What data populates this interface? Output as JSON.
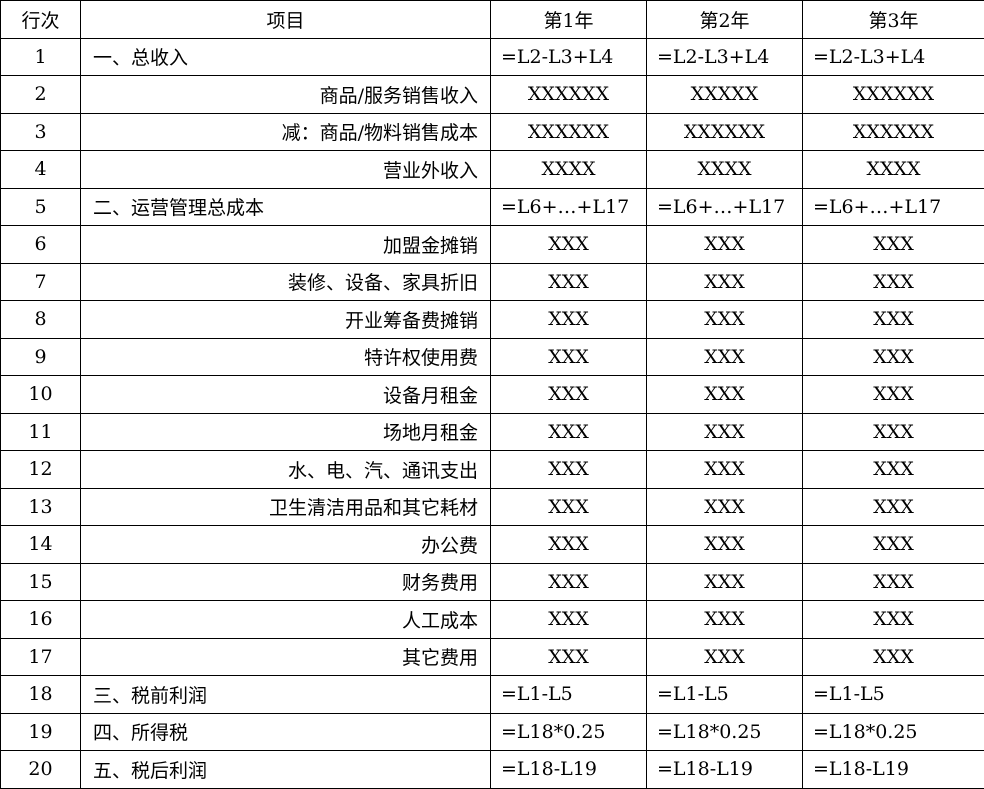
{
  "headers": [
    "行次",
    "项目",
    "第1年",
    "第2年",
    "第3年"
  ],
  "rows": [
    {
      "line": "1",
      "item": "一、总收入",
      "align": "left",
      "values": [
        "=L2-L3+L4",
        "=L2-L3+L4",
        "=L2-L3+L4"
      ],
      "valign": "left"
    },
    {
      "line": "2",
      "item": "商品/服务销售收入",
      "align": "right",
      "values": [
        "XXXXXX",
        "XXXXX",
        "XXXXXX"
      ],
      "valign": "center"
    },
    {
      "line": "3",
      "item": "减：商品/物料销售成本",
      "align": "right",
      "values": [
        "XXXXXX",
        "XXXXXX",
        "XXXXXX"
      ],
      "valign": "center"
    },
    {
      "line": "4",
      "item": "营业外收入",
      "align": "right",
      "values": [
        "XXXX",
        "XXXX",
        "XXXX"
      ],
      "valign": "center"
    },
    {
      "line": "5",
      "item": "二、运营管理总成本",
      "align": "left",
      "values": [
        "=L6+…+L17",
        "=L6+…+L17",
        "=L6+…+L17"
      ],
      "valign": "left"
    },
    {
      "line": "6",
      "item": "加盟金摊销",
      "align": "right",
      "values": [
        "XXX",
        "XXX",
        "XXX"
      ],
      "valign": "center"
    },
    {
      "line": "7",
      "item": "装修、设备、家具折旧",
      "align": "right",
      "values": [
        "XXX",
        "XXX",
        "XXX"
      ],
      "valign": "center"
    },
    {
      "line": "8",
      "item": "开业筹备费摊销",
      "align": "right",
      "values": [
        "XXX",
        "XXX",
        "XXX"
      ],
      "valign": "center"
    },
    {
      "line": "9",
      "item": "特许权使用费",
      "align": "right",
      "values": [
        "XXX",
        "XXX",
        "XXX"
      ],
      "valign": "center"
    },
    {
      "line": "10",
      "item": "设备月租金",
      "align": "right",
      "values": [
        "XXX",
        "XXX",
        "XXX"
      ],
      "valign": "center"
    },
    {
      "line": "11",
      "item": "场地月租金",
      "align": "right",
      "values": [
        "XXX",
        "XXX",
        "XXX"
      ],
      "valign": "center"
    },
    {
      "line": "12",
      "item": "水、电、汽、通讯支出",
      "align": "right",
      "values": [
        "XXX",
        "XXX",
        "XXX"
      ],
      "valign": "center"
    },
    {
      "line": "13",
      "item": "卫生清洁用品和其它耗材",
      "align": "right",
      "values": [
        "XXX",
        "XXX",
        "XXX"
      ],
      "valign": "center"
    },
    {
      "line": "14",
      "item": "办公费",
      "align": "right",
      "values": [
        "XXX",
        "XXX",
        "XXX"
      ],
      "valign": "center"
    },
    {
      "line": "15",
      "item": "财务费用",
      "align": "right",
      "values": [
        "XXX",
        "XXX",
        "XXX"
      ],
      "valign": "center"
    },
    {
      "line": "16",
      "item": "人工成本",
      "align": "right",
      "values": [
        "XXX",
        "XXX",
        "XXX"
      ],
      "valign": "center"
    },
    {
      "line": "17",
      "item": "其它费用",
      "align": "right",
      "values": [
        "XXX",
        "XXX",
        "XXX"
      ],
      "valign": "center"
    },
    {
      "line": "18",
      "item": "三、税前利润",
      "align": "left",
      "values": [
        "=L1-L5",
        "=L1-L5",
        "=L1-L5"
      ],
      "valign": "left"
    },
    {
      "line": "19",
      "item": "四、所得税",
      "align": "left",
      "values": [
        "=L18*0.25",
        "=L18*0.25",
        "=L18*0.25"
      ],
      "valign": "left"
    },
    {
      "line": "20",
      "item": "五、税后利润",
      "align": "left",
      "values": [
        "=L18-L19",
        "=L18-L19",
        "=L18-L19"
      ],
      "valign": "left"
    }
  ]
}
